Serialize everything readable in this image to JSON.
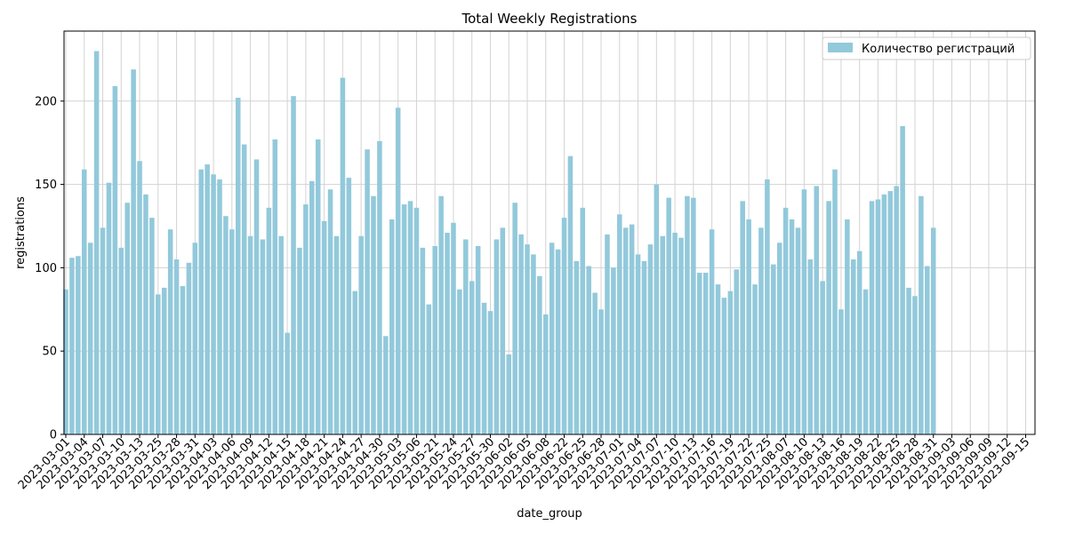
{
  "chart_data": {
    "type": "bar",
    "title": "Total Weekly Registrations",
    "xlabel": "date_group",
    "ylabel": "registrations",
    "ylim": [
      0,
      242
    ],
    "yticks": [
      0,
      50,
      100,
      150,
      200
    ],
    "grid": true,
    "legend": {
      "position": "top-right",
      "label": "Количество регистраций"
    },
    "colors": {
      "bar": "#92C9DB",
      "grid": "#d3d3d3",
      "axis": "#000000"
    },
    "tick_labels": [
      "2023-03-01",
      "2023-03-04",
      "2023-03-07",
      "2023-03-10",
      "2023-03-13",
      "2023-03-25",
      "2023-03-28",
      "2023-03-31",
      "2023-04-03",
      "2023-04-06",
      "2023-04-09",
      "2023-04-12",
      "2023-04-15",
      "2023-04-18",
      "2023-04-21",
      "2023-04-24",
      "2023-04-27",
      "2023-04-30",
      "2023-05-03",
      "2023-05-06",
      "2023-05-21",
      "2023-05-24",
      "2023-05-27",
      "2023-05-30",
      "2023-06-02",
      "2023-06-05",
      "2023-06-08",
      "2023-06-22",
      "2023-06-25",
      "2023-06-28",
      "2023-07-01",
      "2023-07-04",
      "2023-07-07",
      "2023-07-10",
      "2023-07-13",
      "2023-07-16",
      "2023-07-19",
      "2023-07-22",
      "2023-07-25",
      "2023-08-07",
      "2023-08-10",
      "2023-08-13",
      "2023-08-16",
      "2023-08-19",
      "2023-08-22",
      "2023-08-25",
      "2023-08-28",
      "2023-08-31",
      "2023-09-03",
      "2023-09-06",
      "2023-09-09",
      "2023-09-12",
      "2023-09-15"
    ],
    "values": [
      87,
      106,
      107,
      159,
      115,
      230,
      124,
      151,
      209,
      112,
      139,
      219,
      164,
      144,
      130,
      84,
      88,
      123,
      105,
      89,
      103,
      115,
      159,
      162,
      156,
      153,
      131,
      123,
      202,
      174,
      119,
      165,
      117,
      136,
      177,
      119,
      61,
      203,
      112,
      138,
      152,
      177,
      128,
      147,
      119,
      214,
      154,
      86,
      119,
      171,
      143,
      176,
      59,
      129,
      196,
      138,
      140,
      136,
      112,
      78,
      113,
      143,
      121,
      127,
      87,
      117,
      92,
      113,
      79,
      74,
      117,
      124,
      48,
      139,
      120,
      114,
      108,
      95,
      72,
      115,
      111,
      130,
      167,
      104,
      136,
      101,
      85,
      75,
      120,
      100,
      132,
      124,
      126,
      108,
      104,
      114,
      150,
      119,
      142,
      121,
      118,
      143,
      142,
      97,
      97,
      123,
      90,
      82,
      86,
      99,
      140,
      129,
      90,
      124,
      153,
      102,
      115,
      136,
      129,
      124,
      147,
      105,
      149,
      92,
      140,
      159,
      75,
      129,
      105,
      110,
      87,
      140,
      141,
      144,
      146,
      149,
      185,
      88,
      83,
      143,
      101,
      124,
      0,
      0,
      0,
      0,
      0,
      0,
      0,
      0,
      0,
      0,
      0,
      0,
      0,
      0
    ]
  }
}
